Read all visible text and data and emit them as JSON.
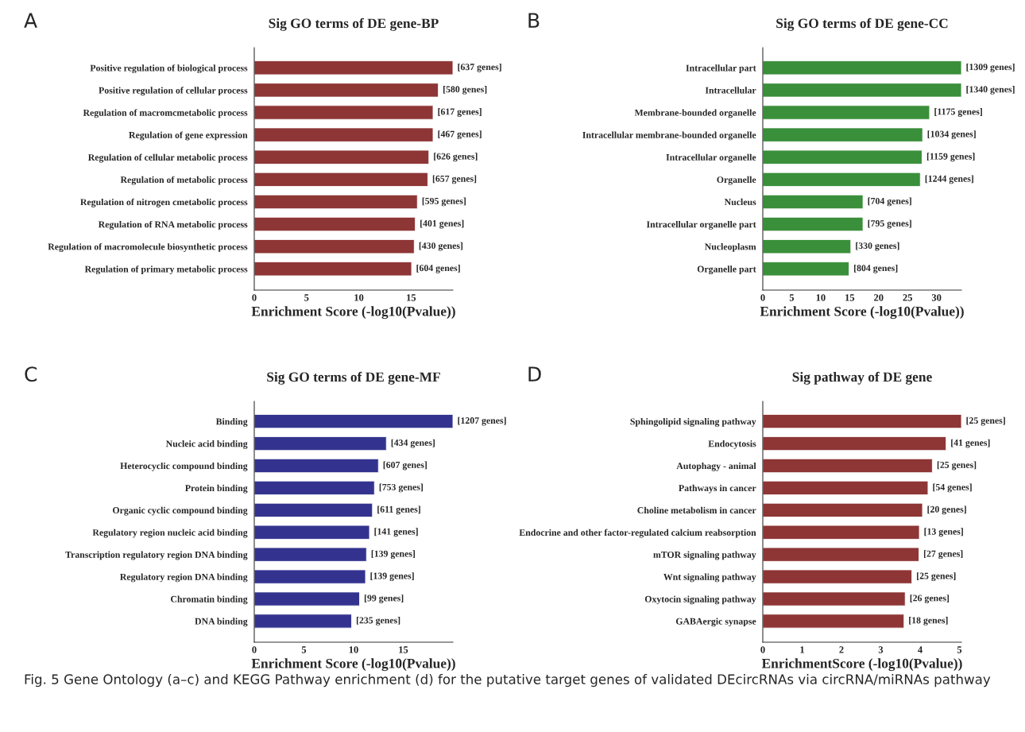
{
  "chart_data": [
    {
      "type": "bar",
      "orientation": "horizontal",
      "title": "Sig GO terms of DE gene-BP",
      "xlabel": "Enrichment Score (-log10(Pvalue))",
      "color": "#8e3535",
      "categories": [
        "Positive regulation of biological process",
        "Positive regulation of cellular process",
        "Regulation of macromcmetabolic process",
        "Regulation of gene expression",
        "Regulation of cellular metabolic process",
        "Regulation of metabolic process",
        "Regulation of nitrogen cmetabolic process",
        "Regulation of RNA metabolic process",
        "Regulation of macromolecule biosynthetic process",
        "Regulation of primary metabolic process"
      ],
      "values": [
        19.0,
        17.6,
        17.1,
        17.1,
        16.7,
        16.6,
        15.6,
        15.4,
        15.3,
        15.05
      ],
      "xlim": [
        0,
        19
      ],
      "xticks": [
        0,
        5,
        10,
        15
      ],
      "grid": false,
      "annotations": [
        "A",
        {
          "text": "[637 genes]",
          "x": 19.0,
          "y": "Positive regulation of biological process"
        },
        {
          "text": "[580 genes]",
          "x": 17.6,
          "y": "Positive regulation of cellular process"
        },
        {
          "text": "[617 genes]",
          "x": 17.1,
          "y": "Regulation of macromcmetabolic process"
        },
        {
          "text": "[467 genes]",
          "x": 17.1,
          "y": "Regulation of gene expression"
        },
        {
          "text": "[626 genes]",
          "x": 16.7,
          "y": "Regulation of cellular metabolic process"
        },
        {
          "text": "[657 genes]",
          "x": 16.6,
          "y": "Regulation of metabolic process"
        },
        {
          "text": "[595 genes]",
          "x": 15.6,
          "y": "Regulation of nitrogen cmetabolic process"
        },
        {
          "text": "[401 genes]",
          "x": 15.4,
          "y": "Regulation of RNA metabolic process"
        },
        {
          "text": "[430 genes]",
          "x": 15.3,
          "y": "Regulation of macromolecule biosynthetic process"
        },
        {
          "text": "[604 genes]",
          "x": 15.05,
          "y": "Regulation of primary metabolic process"
        }
      ]
    },
    {
      "type": "bar",
      "orientation": "horizontal",
      "title": "Sig GO terms of DE gene-CC",
      "xlabel": "Enrichment Score (-log10(Pvalue))",
      "color": "#3a8f3a",
      "categories": [
        "Intracellular part",
        "Intracellular",
        "Membrane-bounded organelle",
        "Intracellular membrane-bounded organelle",
        "Intracellular organelle",
        "Organelle",
        "Nucleus",
        "Intracellular organelle part",
        "Nucleoplasm",
        "Organelle part"
      ],
      "values": [
        34.3,
        34.3,
        28.8,
        27.6,
        27.5,
        27.2,
        17.3,
        17.3,
        15.2,
        14.9
      ],
      "xlim": [
        0,
        34.3
      ],
      "xticks": [
        0,
        5,
        10,
        15,
        20,
        25,
        30
      ],
      "grid": false,
      "annotations": [
        "B",
        {
          "text": "[1309 genes]",
          "x": 34.3,
          "y": "Intracellular part"
        },
        {
          "text": "[1340 genes]",
          "x": 34.3,
          "y": "Intracellular"
        },
        {
          "text": "[1175 genes]",
          "x": 28.8,
          "y": "Membrane-bounded organelle"
        },
        {
          "text": "[1034 genes]",
          "x": 27.6,
          "y": "Intracellular membrane-bounded organelle"
        },
        {
          "text": "[1159 genes]",
          "x": 27.5,
          "y": "Intracellular organelle"
        },
        {
          "text": "[1244 genes]",
          "x": 27.2,
          "y": "Organelle"
        },
        {
          "text": "[704 genes]",
          "x": 17.3,
          "y": "Nucleus"
        },
        {
          "text": "[795 genes]",
          "x": 17.3,
          "y": "Intracellular organelle part"
        },
        {
          "text": "[330 genes]",
          "x": 15.2,
          "y": "Nucleoplasm"
        },
        {
          "text": "[804 genes]",
          "x": 14.9,
          "y": "Organelle part"
        }
      ]
    },
    {
      "type": "bar",
      "orientation": "horizontal",
      "title": "Sig GO terms of DE gene-MF",
      "xlabel": "Enrichment Score (-log10(Pvalue))",
      "color": "#33338f",
      "categories": [
        "Binding",
        "Nucleic acid binding",
        "Heterocyclic compound binding",
        "Protein binding",
        "Organic cyclic compound binding",
        "Regulatory region nucleic acid binding",
        "Transcription regulatory region DNA binding",
        "Regulatory region DNA binding",
        "Chromatin binding",
        "DNA binding"
      ],
      "values": [
        20.0,
        13.3,
        12.5,
        12.1,
        11.9,
        11.6,
        11.3,
        11.2,
        10.6,
        9.8
      ],
      "xlim": [
        0,
        20
      ],
      "xticks": [
        0,
        5,
        10,
        15
      ],
      "grid": false,
      "annotations": [
        "C",
        {
          "text": "[1207 genes]",
          "x": 20.0,
          "y": "Binding"
        },
        {
          "text": "[434 genes]",
          "x": 13.3,
          "y": "Nucleic acid binding"
        },
        {
          "text": "[607 genes]",
          "x": 12.5,
          "y": "Heterocyclic compound binding"
        },
        {
          "text": "[753 genes]",
          "x": 12.1,
          "y": "Protein binding"
        },
        {
          "text": "[611 genes]",
          "x": 11.9,
          "y": "Organic cyclic compound binding"
        },
        {
          "text": "[141 genes]",
          "x": 11.6,
          "y": "Regulatory region nucleic acid binding"
        },
        {
          "text": "[139 genes]",
          "x": 11.3,
          "y": "Transcription regulatory region DNA binding"
        },
        {
          "text": "[139 genes]",
          "x": 11.2,
          "y": "Regulatory region DNA binding"
        },
        {
          "text": "[99 genes]",
          "x": 10.6,
          "y": "Chromatin binding"
        },
        {
          "text": "[235 genes]",
          "x": 9.8,
          "y": "DNA binding"
        }
      ]
    },
    {
      "type": "bar",
      "orientation": "horizontal",
      "title": "Sig pathway of DE gene",
      "xlabel": "EnrichmentScore (-log10(Pvalue))",
      "color": "#8e3535",
      "categories": [
        "Sphingolipid signaling pathway",
        "Endocytosis",
        "Autophagy - animal",
        "Pathways in cancer",
        "Choline metabolism in cancer",
        "Endocrine and other factor-regulated calcium reabsorption",
        "mTOR signaling pathway",
        "Wnt signaling pathway",
        "Oxytocin signaling pathway",
        "GABAergic synapse"
      ],
      "values": [
        5.05,
        4.66,
        4.31,
        4.2,
        4.06,
        3.98,
        3.97,
        3.79,
        3.62,
        3.59
      ],
      "xlim": [
        0,
        5.05
      ],
      "xticks": [
        0,
        1,
        2,
        3,
        4,
        5
      ],
      "grid": false,
      "annotations": [
        "D",
        {
          "text": "[25 genes]",
          "x": 5.05,
          "y": "Sphingolipid signaling pathway"
        },
        {
          "text": "[41 genes]",
          "x": 4.66,
          "y": "Endocytosis"
        },
        {
          "text": "[25 genes]",
          "x": 4.31,
          "y": "Autophagy - animal"
        },
        {
          "text": "[54 genes]",
          "x": 4.2,
          "y": "Pathways in cancer"
        },
        {
          "text": "[20 genes]",
          "x": 4.06,
          "y": "Choline metabolism in cancer"
        },
        {
          "text": "[13 genes]",
          "x": 3.98,
          "y": "Endocrine and other factor-regulated calcium reabsorption"
        },
        {
          "text": "[27 genes]",
          "x": 3.97,
          "y": "mTOR signaling pathway"
        },
        {
          "text": "[25 genes]",
          "x": 3.79,
          "y": "Wnt signaling pathway"
        },
        {
          "text": "[26 genes]",
          "x": 3.62,
          "y": "Oxytocin signaling pathway"
        },
        {
          "text": "[18 genes]",
          "x": 3.59,
          "y": "GABAergic synapse"
        },
        "Fig. 5 Gene Ontology (a–c) and KEGG Pathway enrichment (d) for the putative target genes of validated DEcircRNAs via circRNA/miRNAs pathway"
      ]
    }
  ]
}
